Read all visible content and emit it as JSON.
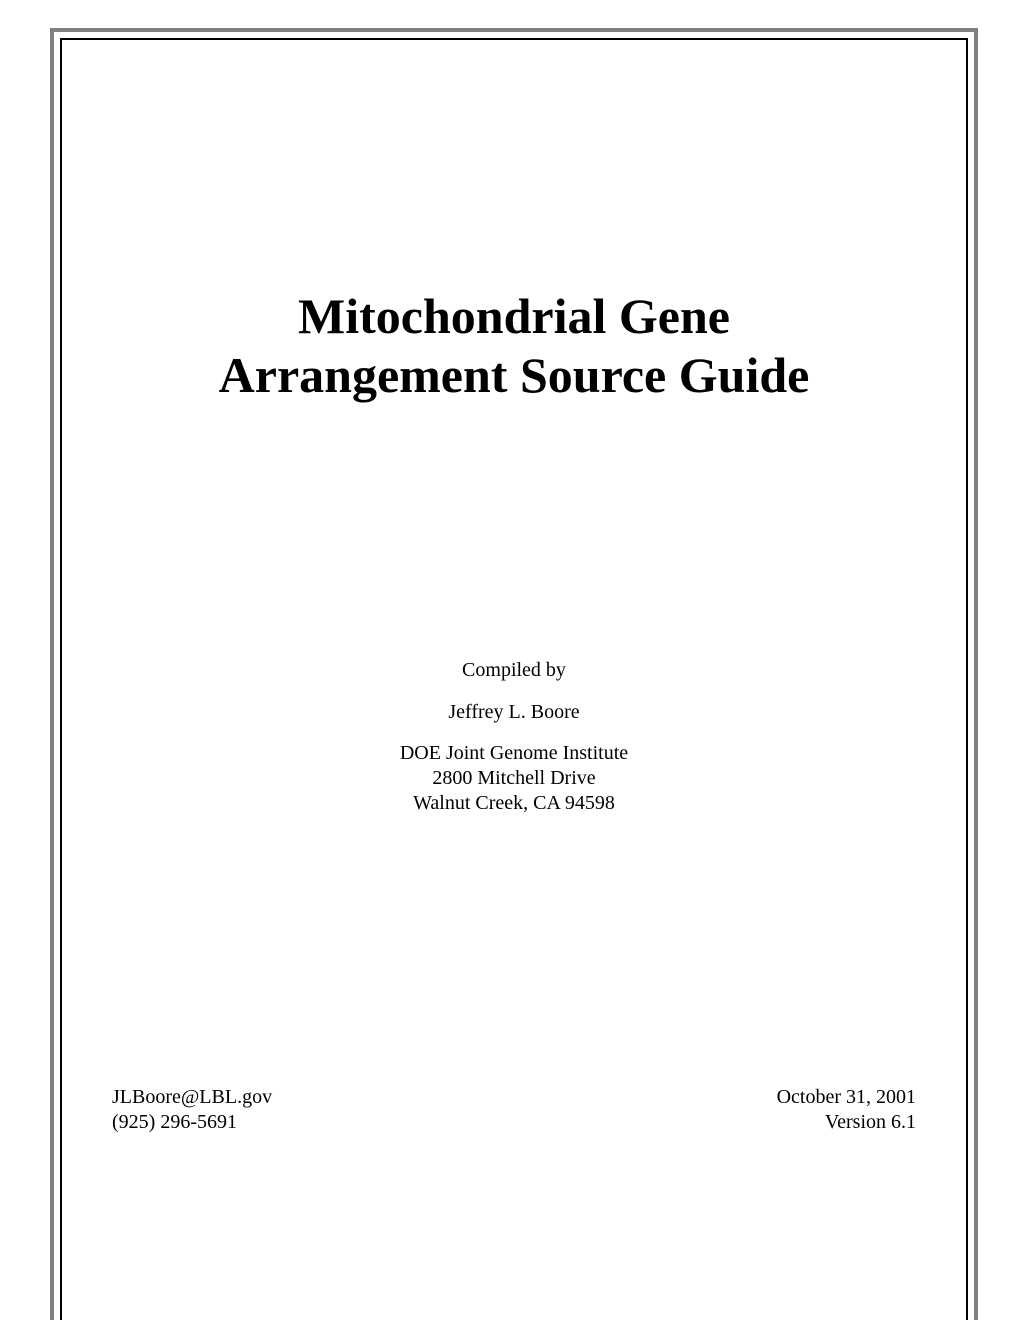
{
  "title": {
    "line1": "Mitochondrial Gene",
    "line2": "Arrangement Source Guide"
  },
  "compiled": {
    "label": "Compiled by",
    "author": "Jeffrey L. Boore",
    "institute": "DOE Joint Genome Institute",
    "address1": "2800 Mitchell Drive",
    "address2": "Walnut Creek, CA  94598"
  },
  "footer": {
    "email": "JLBoore@LBL.gov",
    "phone": "(925) 296-5691",
    "date": "October 31, 2001",
    "version": "Version 6.1"
  },
  "colors": {
    "outer_border": "#808080",
    "inner_border": "#000000",
    "background": "#ffffff",
    "text": "#000000"
  },
  "typography": {
    "title_fontsize": 50,
    "title_weight": "bold",
    "body_fontsize": 20,
    "font_family": "Times New Roman"
  }
}
